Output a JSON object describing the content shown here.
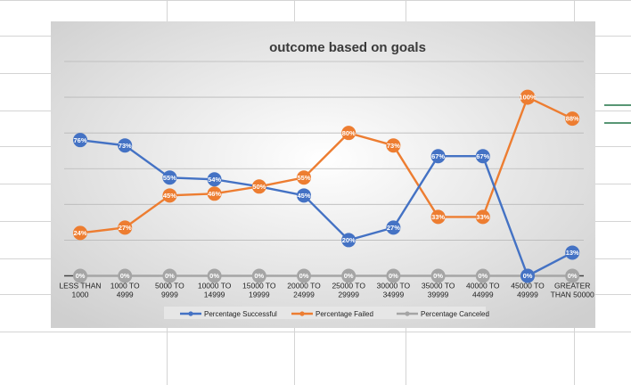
{
  "chart_data": {
    "type": "line",
    "title": "outcome based on goals",
    "categories": [
      [
        "LESS THAN",
        "1000"
      ],
      [
        "1000 TO",
        "4999"
      ],
      [
        "5000 TO",
        "9999"
      ],
      [
        "10000 TO",
        "14999"
      ],
      [
        "15000 TO",
        "19999"
      ],
      [
        "20000 TO",
        "24999"
      ],
      [
        "25000 TO",
        "29999"
      ],
      [
        "30000 TO",
        "34999"
      ],
      [
        "35000 TO",
        "39999"
      ],
      [
        "40000 TO",
        "44999"
      ],
      [
        "45000 TO",
        "49999"
      ],
      [
        "GREATER",
        "THAN 50000"
      ]
    ],
    "series": [
      {
        "name": "Percentage Successful",
        "color": "#4472C4",
        "values": [
          76,
          73,
          55,
          54,
          50,
          45,
          20,
          27,
          67,
          67,
          0,
          13
        ],
        "labels": [
          "76%",
          "73%",
          "55%",
          "54%",
          "",
          "45%",
          "20%",
          "27%",
          "67%",
          "67%",
          "0%",
          "13%"
        ]
      },
      {
        "name": "Percentage Failed",
        "color": "#ED7D31",
        "values": [
          24,
          27,
          45,
          46,
          50,
          55,
          80,
          73,
          33,
          33,
          100,
          88
        ],
        "labels": [
          "24%",
          "27%",
          "45%",
          "46%",
          "50%",
          "55%",
          "80%",
          "73%",
          "33%",
          "33%",
          "100%",
          "88%"
        ]
      },
      {
        "name": "Percentage Canceled",
        "color": "#A5A5A5",
        "values": [
          0,
          0,
          0,
          0,
          0,
          0,
          0,
          0,
          0,
          0,
          0,
          0
        ],
        "labels": [
          "0%",
          "0%",
          "0%",
          "0%",
          "0%",
          "0%",
          "0%",
          "0%",
          "0%",
          "0%",
          "0%",
          "0%"
        ]
      }
    ],
    "ylim": [
      0,
      120
    ],
    "grid": true,
    "legend": "bottom"
  }
}
